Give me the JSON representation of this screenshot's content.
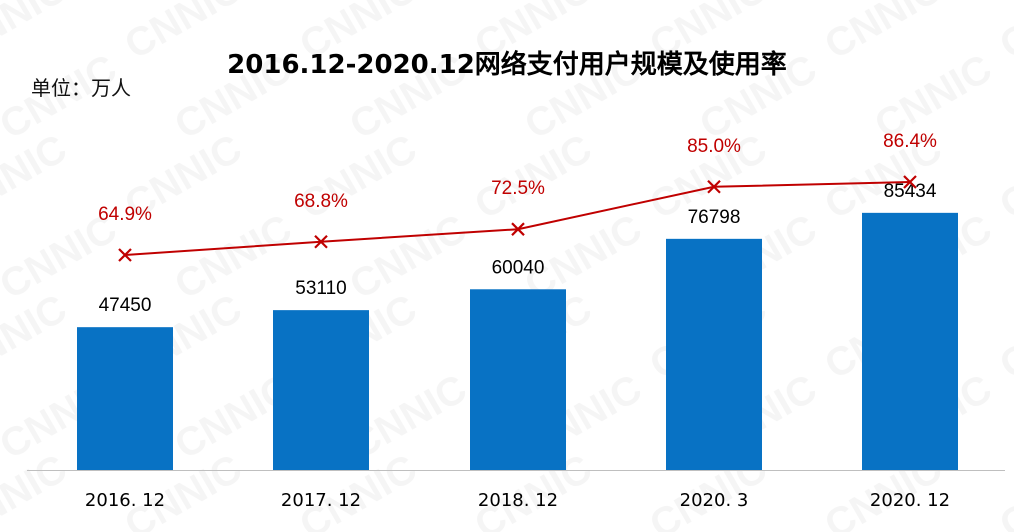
{
  "chart_data": {
    "type": "bar",
    "title": "2016.12-2020.12网络支付用户规模及使用率",
    "unit_label": "单位：万人",
    "categories": [
      "2016. 12",
      "2017. 12",
      "2018. 12",
      "2020. 3",
      "2020. 12"
    ],
    "series": [
      {
        "name": "网络支付用户规模",
        "type": "bar",
        "unit": "万人",
        "values": [
          47450,
          53110,
          60040,
          76798,
          85434
        ],
        "labels": [
          "47450",
          "53110",
          "60040",
          "76798",
          "85434"
        ],
        "color": "#0872C4"
      },
      {
        "name": "使用率",
        "type": "line",
        "unit": "%",
        "values": [
          64.9,
          68.8,
          72.5,
          85.0,
          86.4
        ],
        "labels": [
          "64.9%",
          "68.8%",
          "72.5%",
          "85.0%",
          "86.4%"
        ],
        "color": "#C00000"
      }
    ],
    "grid": false,
    "legend": "none",
    "watermark": "CNNIC"
  }
}
